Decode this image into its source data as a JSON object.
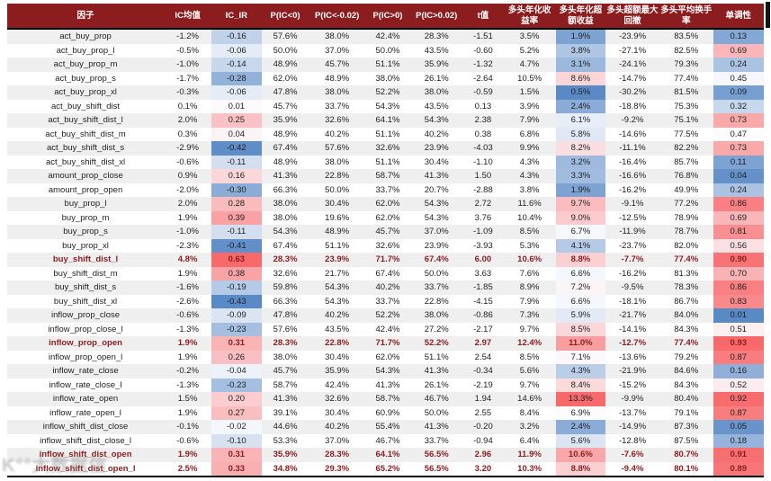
{
  "colors": {
    "header_bg": "#8b1d1f",
    "highlight_text": "#8b1d1f",
    "row_alt_bg": "#efefef",
    "heat_blue": "#5a8ac6",
    "heat_mid": "#fcfcff",
    "heat_red": "#f8696b",
    "border_black": "#000000"
  },
  "watermark": {
    "text": "K°°大数据信"
  },
  "chart_data": {
    "type": "table",
    "columns": [
      "因子",
      "IC均值",
      "IC_IR",
      "P(IC<0)",
      "P(IC<-0.02)",
      "P(IC>0)",
      "P(IC>0.02)",
      "t值",
      "多头年化收益率",
      "多头年化超额收益",
      "多头超额最大回撤",
      "多头平均换手率",
      "单调性"
    ],
    "heat_columns": [
      {
        "column_index": 2,
        "mid": 0
      },
      {
        "column_index": 9
      },
      {
        "column_index": 12
      }
    ],
    "highlight_rows": [
      "buy_shift_dist_l",
      "inflow_prop_open",
      "inflow_shift_dist_open",
      "inflow_shift_dist_open_l"
    ],
    "rows": [
      {
        "factor": "act_buy_prop",
        "highlight": false,
        "values": [
          "-1.2%",
          "-0.16",
          "57.6%",
          "38.0%",
          "42.4%",
          "28.3%",
          "-1.51",
          "3.5%",
          "1.9%",
          "-23.9%",
          "83.5%",
          "0.13"
        ]
      },
      {
        "factor": "act_buy_prop_l",
        "highlight": false,
        "values": [
          "-0.5%",
          "-0.06",
          "50.0%",
          "37.0%",
          "50.0%",
          "43.5%",
          "-0.60",
          "5.2%",
          "3.8%",
          "-27.1%",
          "82.5%",
          "0.69"
        ]
      },
      {
        "factor": "act_buy_prop_m",
        "highlight": false,
        "values": [
          "-1.0%",
          "-0.14",
          "48.9%",
          "45.7%",
          "51.1%",
          "35.9%",
          "-1.32",
          "4.7%",
          "3.1%",
          "-24.1%",
          "79.3%",
          "0.24"
        ]
      },
      {
        "factor": "act_buy_prop_s",
        "highlight": false,
        "values": [
          "-1.7%",
          "-0.28",
          "62.0%",
          "48.9%",
          "38.0%",
          "26.1%",
          "-2.64",
          "10.5%",
          "8.6%",
          "-14.7%",
          "77.4%",
          "0.45"
        ]
      },
      {
        "factor": "act_buy_prop_xl",
        "highlight": false,
        "values": [
          "-0.3%",
          "-0.06",
          "47.8%",
          "38.0%",
          "52.2%",
          "38.0%",
          "-0.59",
          "1.5%",
          "0.5%",
          "-30.2%",
          "81.5%",
          "0.09"
        ]
      },
      {
        "factor": "act_buy_shift_dist",
        "highlight": false,
        "values": [
          "0.1%",
          "0.01",
          "45.7%",
          "33.7%",
          "54.3%",
          "43.5%",
          "0.13",
          "3.9%",
          "2.4%",
          "-18.8%",
          "75.3%",
          "0.32"
        ]
      },
      {
        "factor": "act_buy_shift_dist_l",
        "highlight": false,
        "values": [
          "2.0%",
          "0.25",
          "35.9%",
          "32.6%",
          "64.1%",
          "54.3%",
          "2.38",
          "7.9%",
          "6.1%",
          "-9.2%",
          "75.1%",
          "0.73"
        ]
      },
      {
        "factor": "act_buy_shift_dist_m",
        "highlight": false,
        "values": [
          "0.3%",
          "0.04",
          "48.9%",
          "40.2%",
          "51.1%",
          "40.2%",
          "0.38",
          "6.8%",
          "5.8%",
          "-14.6%",
          "77.5%",
          "0.47"
        ]
      },
      {
        "factor": "act_buy_shift_dist_s",
        "highlight": false,
        "values": [
          "-2.9%",
          "-0.42",
          "67.4%",
          "57.6%",
          "32.6%",
          "23.9%",
          "-4.03",
          "9.9%",
          "8.2%",
          "-11.1%",
          "82.2%",
          "0.73"
        ]
      },
      {
        "factor": "act_buy_shift_dist_xl",
        "highlight": false,
        "values": [
          "-0.6%",
          "-0.11",
          "48.9%",
          "38.0%",
          "51.1%",
          "30.4%",
          "-1.10",
          "4.3%",
          "3.2%",
          "-16.4%",
          "85.7%",
          "0.11"
        ]
      },
      {
        "factor": "amount_prop_close",
        "highlight": false,
        "values": [
          "0.9%",
          "0.16",
          "41.3%",
          "22.8%",
          "58.7%",
          "41.3%",
          "1.50",
          "4.3%",
          "3.3%",
          "-16.6%",
          "76.8%",
          "0.04"
        ]
      },
      {
        "factor": "amount_prop_open",
        "highlight": false,
        "values": [
          "-2.0%",
          "-0.30",
          "66.3%",
          "50.0%",
          "33.7%",
          "20.7%",
          "-2.88",
          "3.8%",
          "1.9%",
          "-16.2%",
          "49.9%",
          "0.24"
        ]
      },
      {
        "factor": "buy_prop_l",
        "highlight": false,
        "values": [
          "2.0%",
          "0.28",
          "38.0%",
          "30.4%",
          "62.0%",
          "54.3%",
          "2.72",
          "11.6%",
          "9.7%",
          "-9.1%",
          "77.2%",
          "0.86"
        ]
      },
      {
        "factor": "buy_prop_m",
        "highlight": false,
        "values": [
          "1.9%",
          "0.39",
          "38.0%",
          "19.6%",
          "62.0%",
          "54.3%",
          "3.76",
          "10.4%",
          "9.0%",
          "-12.5%",
          "78.9%",
          "0.69"
        ]
      },
      {
        "factor": "buy_prop_s",
        "highlight": false,
        "values": [
          "-1.0%",
          "-0.11",
          "54.3%",
          "48.9%",
          "45.7%",
          "37.0%",
          "-1.09",
          "8.5%",
          "6.7%",
          "-11.9%",
          "78.7%",
          "0.81"
        ]
      },
      {
        "factor": "buy_prop_xl",
        "highlight": false,
        "values": [
          "-2.3%",
          "-0.41",
          "67.4%",
          "51.1%",
          "32.6%",
          "23.9%",
          "-3.93",
          "5.3%",
          "4.1%",
          "-23.7%",
          "82.0%",
          "0.56"
        ]
      },
      {
        "factor": "buy_shift_dist_l",
        "highlight": true,
        "values": [
          "4.8%",
          "0.63",
          "28.3%",
          "23.9%",
          "71.7%",
          "67.4%",
          "6.00",
          "10.6%",
          "8.8%",
          "-7.7%",
          "77.4%",
          "0.90"
        ]
      },
      {
        "factor": "buy_shift_dist_m",
        "highlight": false,
        "values": [
          "1.9%",
          "0.38",
          "32.6%",
          "21.7%",
          "67.4%",
          "50.0%",
          "3.63",
          "7.6%",
          "6.6%",
          "-16.2%",
          "81.3%",
          "0.70"
        ]
      },
      {
        "factor": "buy_shift_dist_s",
        "highlight": false,
        "values": [
          "-1.6%",
          "-0.19",
          "59.8%",
          "54.3%",
          "40.2%",
          "33.7%",
          "-1.85",
          "8.9%",
          "7.2%",
          "-9.5%",
          "78.3%",
          "0.86"
        ]
      },
      {
        "factor": "buy_shift_dist_xl",
        "highlight": false,
        "values": [
          "-2.6%",
          "-0.43",
          "66.3%",
          "54.3%",
          "33.7%",
          "22.8%",
          "-4.15",
          "7.9%",
          "6.6%",
          "-18.1%",
          "86.7%",
          "0.83"
        ]
      },
      {
        "factor": "inflow_prop_close",
        "highlight": false,
        "values": [
          "-0.6%",
          "-0.09",
          "47.8%",
          "40.2%",
          "52.2%",
          "38.0%",
          "-0.86",
          "7.3%",
          "5.9%",
          "-21.7%",
          "84.0%",
          "0.01"
        ]
      },
      {
        "factor": "inflow_prop_close_l",
        "highlight": false,
        "values": [
          "-1.3%",
          "-0.23",
          "57.6%",
          "43.5%",
          "42.4%",
          "27.2%",
          "-2.17",
          "9.7%",
          "8.5%",
          "-14.1%",
          "84.3%",
          "0.51"
        ]
      },
      {
        "factor": "inflow_prop_open",
        "highlight": true,
        "values": [
          "1.9%",
          "0.31",
          "28.3%",
          "22.8%",
          "71.7%",
          "52.2%",
          "2.97",
          "12.4%",
          "11.0%",
          "-12.7%",
          "77.4%",
          "0.93"
        ]
      },
      {
        "factor": "inflow_prop_open_l",
        "highlight": false,
        "values": [
          "1.9%",
          "0.26",
          "38.0%",
          "30.4%",
          "62.0%",
          "51.1%",
          "2.54",
          "8.5%",
          "7.1%",
          "-13.6%",
          "79.2%",
          "0.87"
        ]
      },
      {
        "factor": "inflow_rate_close",
        "highlight": false,
        "values": [
          "-0.2%",
          "-0.04",
          "45.7%",
          "35.9%",
          "54.3%",
          "41.3%",
          "-0.34",
          "5.6%",
          "4.3%",
          "-21.9%",
          "84.6%",
          "0.16"
        ]
      },
      {
        "factor": "inflow_rate_close_l",
        "highlight": false,
        "values": [
          "-1.3%",
          "-0.23",
          "58.7%",
          "42.4%",
          "41.3%",
          "26.1%",
          "-2.19",
          "9.7%",
          "8.4%",
          "-15.2%",
          "84.3%",
          "0.52"
        ]
      },
      {
        "factor": "inflow_rate_open",
        "highlight": false,
        "values": [
          "1.5%",
          "0.20",
          "41.3%",
          "32.6%",
          "58.7%",
          "46.7%",
          "1.94",
          "14.6%",
          "13.3%",
          "-9.9%",
          "80.4%",
          "0.92"
        ]
      },
      {
        "factor": "inflow_rate_open_l",
        "highlight": false,
        "values": [
          "1.9%",
          "0.27",
          "39.1%",
          "30.4%",
          "60.9%",
          "50.0%",
          "2.55",
          "8.4%",
          "6.9%",
          "-13.7%",
          "79.1%",
          "0.87"
        ]
      },
      {
        "factor": "inflow_shift_dist_close",
        "highlight": false,
        "values": [
          "-0.1%",
          "-0.02",
          "44.6%",
          "40.2%",
          "55.4%",
          "41.3%",
          "-0.20",
          "3.2%",
          "2.4%",
          "-14.9%",
          "87.3%",
          "0.05"
        ]
      },
      {
        "factor": "inflow_shift_dist_close_l",
        "highlight": false,
        "values": [
          "-0.6%",
          "-0.10",
          "53.3%",
          "37.0%",
          "46.7%",
          "33.7%",
          "-0.94",
          "6.4%",
          "5.6%",
          "-12.8%",
          "87.5%",
          "0.18"
        ]
      },
      {
        "factor": "inflow_shift_dist_open",
        "highlight": true,
        "values": [
          "1.9%",
          "0.31",
          "35.9%",
          "28.3%",
          "64.1%",
          "56.5%",
          "2.96",
          "11.9%",
          "10.6%",
          "-7.6%",
          "80.7%",
          "0.91"
        ]
      },
      {
        "factor": "inflow_shift_dist_open_l",
        "highlight": true,
        "values": [
          "2.5%",
          "0.33",
          "34.8%",
          "29.3%",
          "65.2%",
          "56.5%",
          "3.20",
          "10.3%",
          "8.8%",
          "-9.4%",
          "80.1%",
          "0.89"
        ]
      }
    ]
  }
}
